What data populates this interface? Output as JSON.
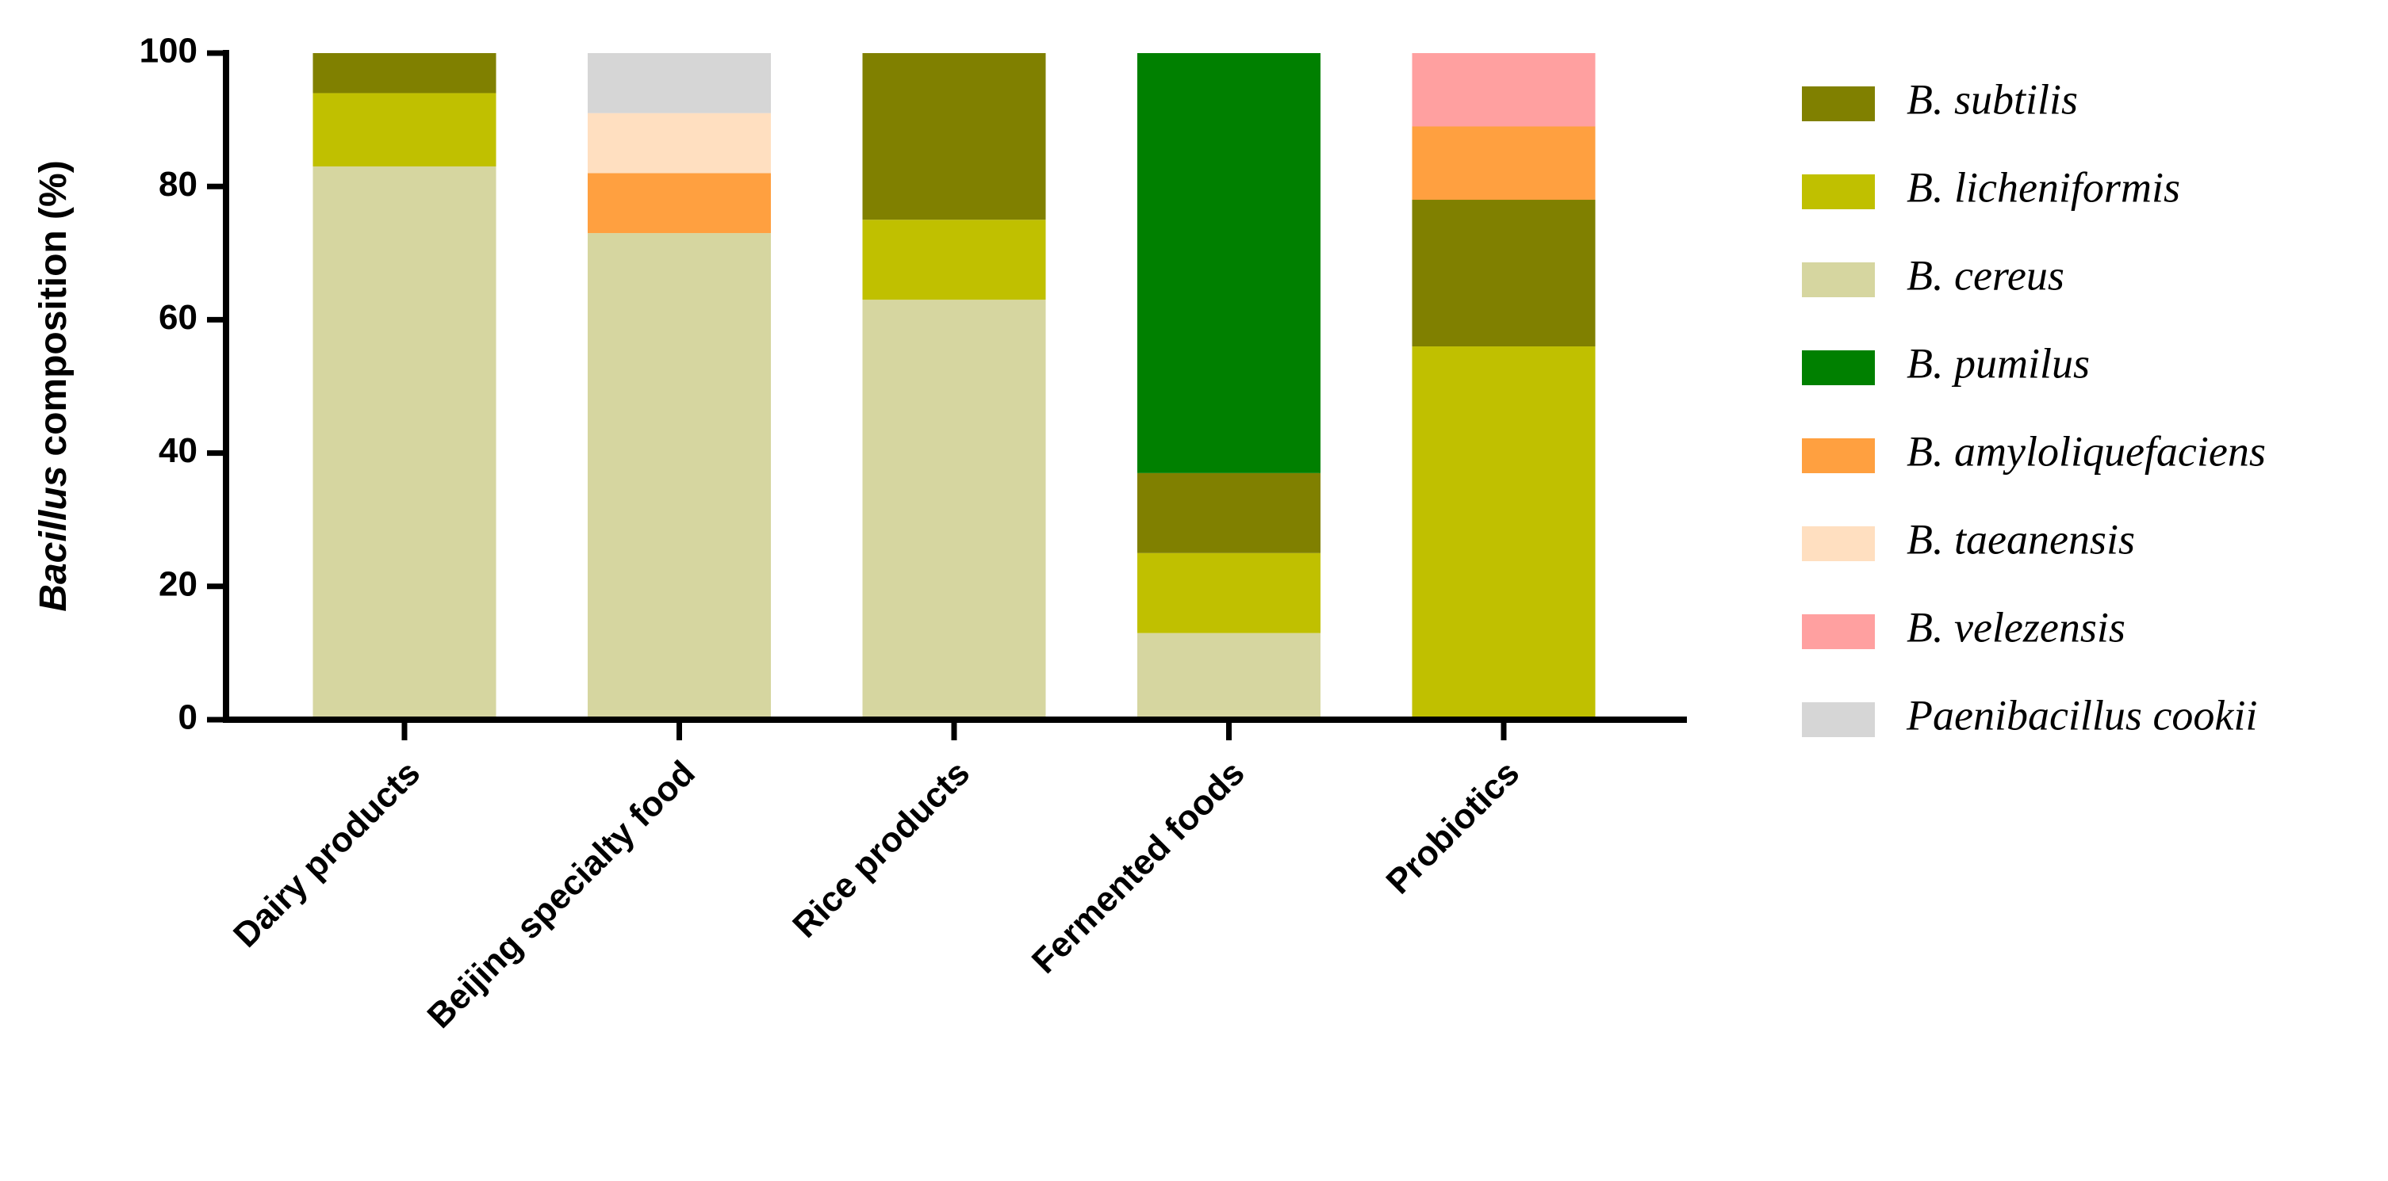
{
  "chart_data": {
    "type": "stacked_bar",
    "y_label": [
      "Bacillus",
      "composition (%)"
    ],
    "categories": [
      "Dairy products",
      "Beijing specialty food",
      "Rice products",
      "Fermented foods",
      "Probiotics"
    ],
    "series": [
      {
        "name": "B. subtilis",
        "color": "#808000",
        "values": [
          6,
          0,
          25,
          12,
          22
        ]
      },
      {
        "name": "B. licheniformis",
        "color": "#c0c000",
        "values": [
          11,
          0,
          12,
          12,
          56
        ]
      },
      {
        "name": "B. cereus",
        "color": "#d6d6a0",
        "values": [
          83,
          73,
          63,
          13,
          0
        ]
      },
      {
        "name": "B. pumilus",
        "color": "#008000",
        "values": [
          0,
          0,
          0,
          63,
          0
        ]
      },
      {
        "name": "B. amyloliquefaciens",
        "color": "#ffa040",
        "values": [
          0,
          9,
          0,
          0,
          11
        ]
      },
      {
        "name": "B. taeanensis",
        "color": "#ffdfc0",
        "values": [
          0,
          9,
          0,
          0,
          0
        ]
      },
      {
        "name": "B. velezensis",
        "color": "#ffa0a0",
        "values": [
          0,
          0,
          0,
          0,
          11
        ]
      },
      {
        "name": "Paenibacillus cookii",
        "color": "#d6d6d6",
        "values": [
          0,
          9,
          0,
          0,
          0
        ]
      }
    ],
    "ylim": [
      0,
      100
    ],
    "yticks": [
      0,
      20,
      40,
      60,
      80,
      100
    ],
    "legend": "right"
  }
}
